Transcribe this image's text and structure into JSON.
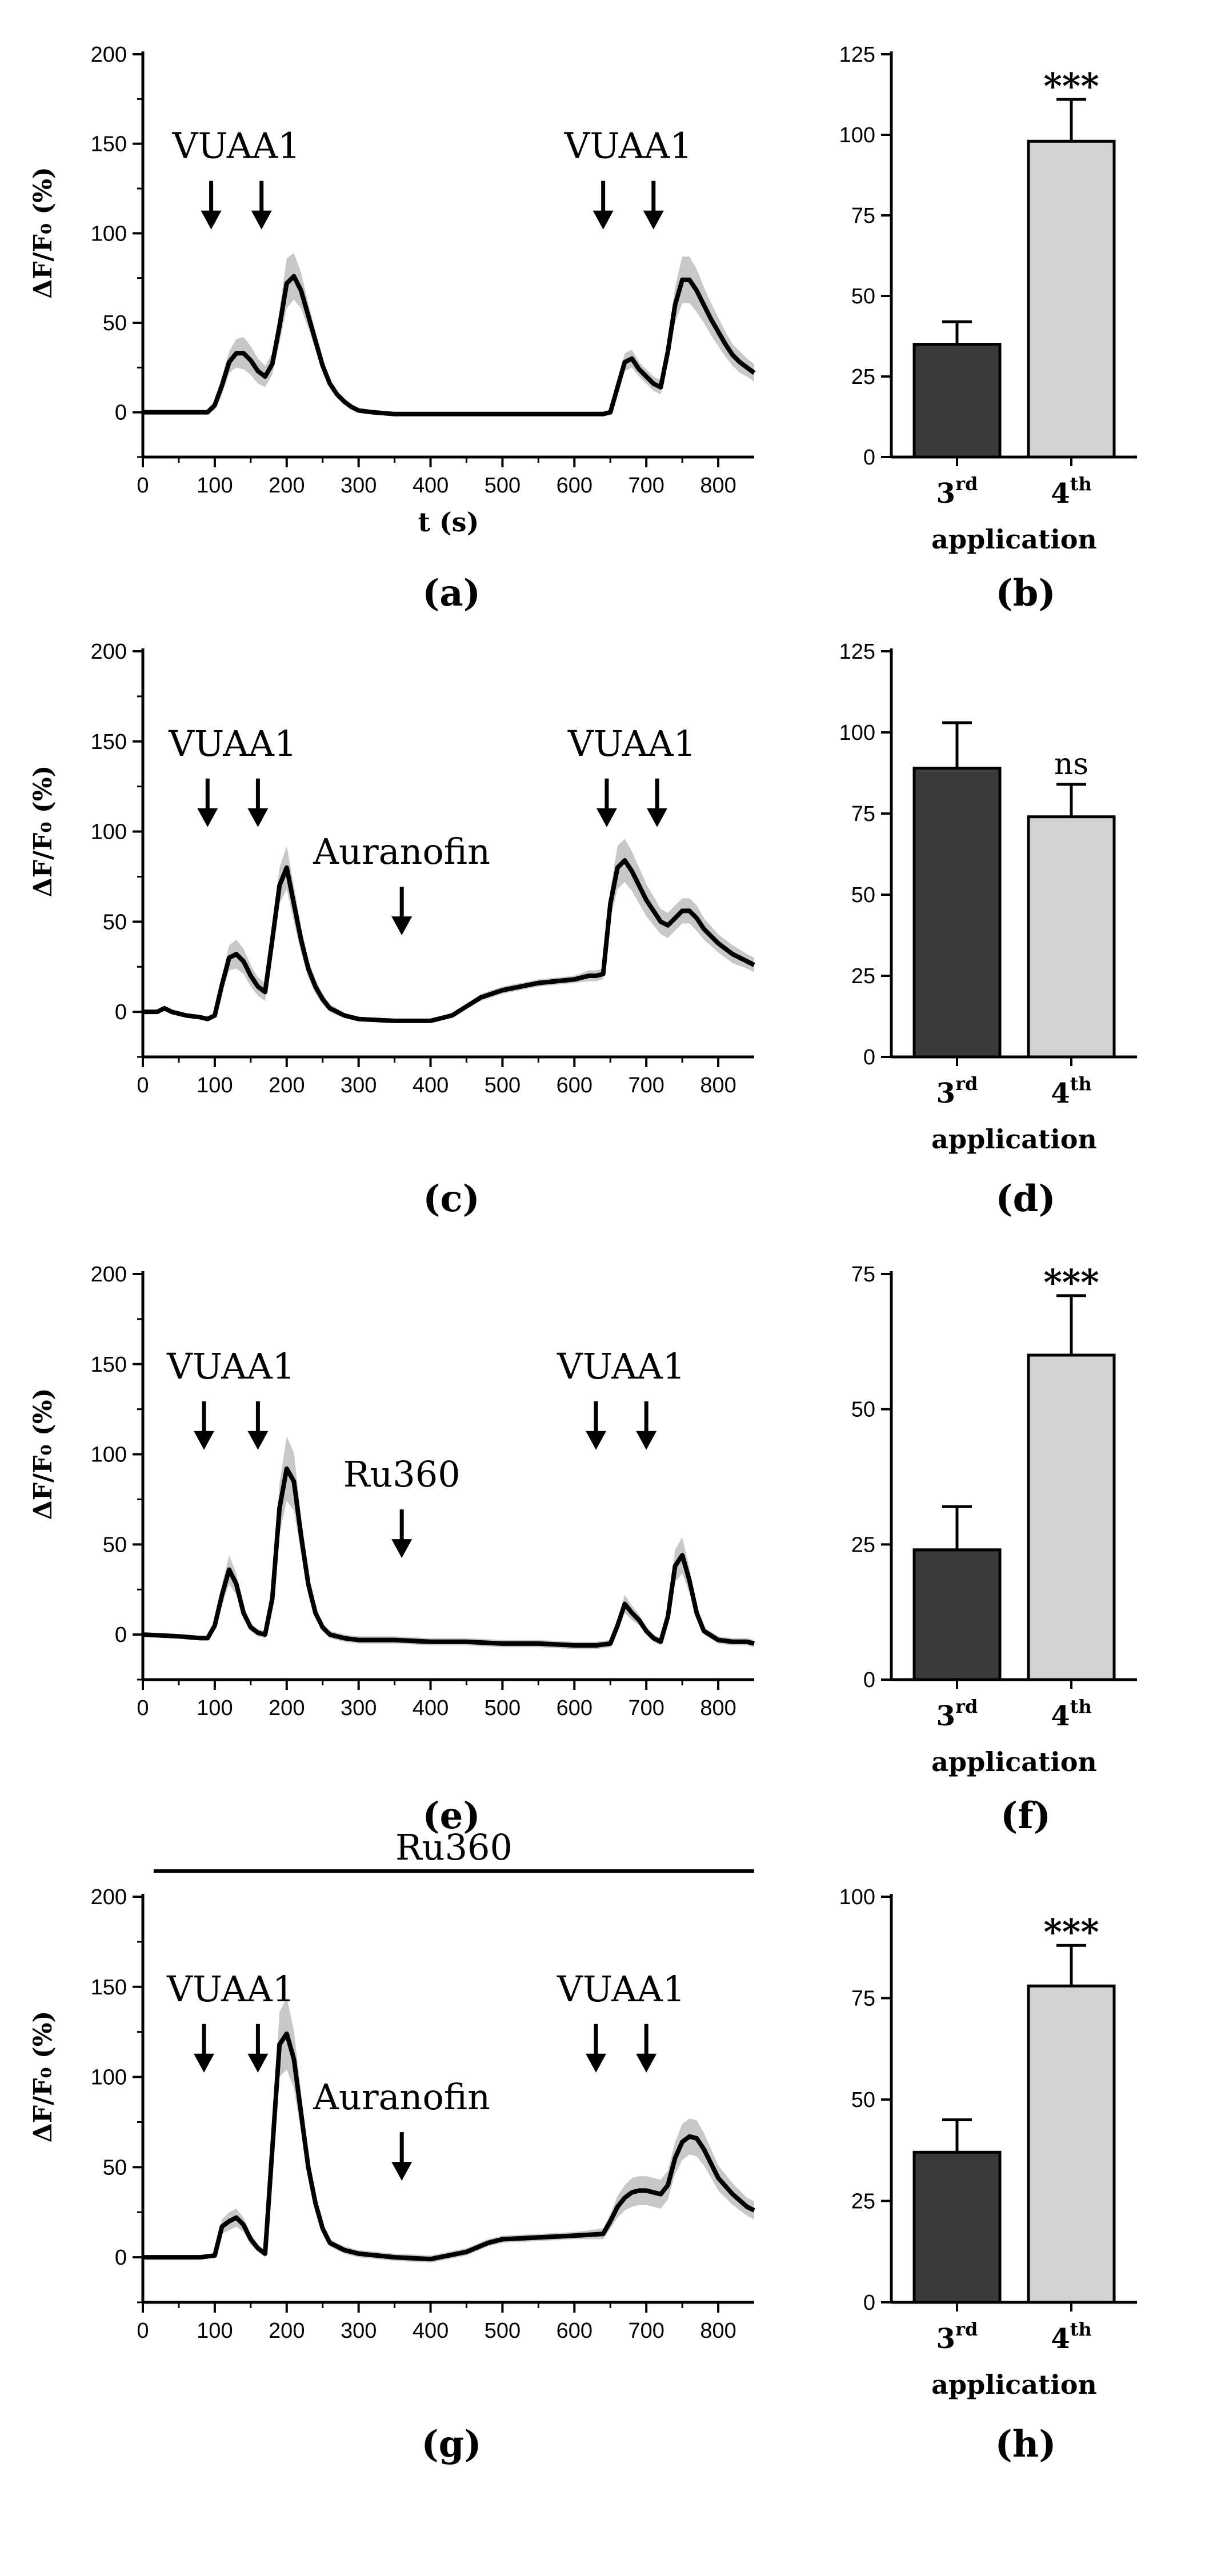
{
  "chart_data": [
    {
      "id": "a",
      "type": "line",
      "panel_label": "(a)",
      "ylabel": "ΔF/F₀ (%)",
      "xlabel": "t (s)",
      "xlim": [
        0,
        850
      ],
      "ylim": [
        -25,
        200
      ],
      "xticks": [
        "0",
        "100",
        "200",
        "300",
        "400",
        "500",
        "600",
        "700",
        "800"
      ],
      "yticks": [
        "0",
        "50",
        "100",
        "150",
        "200"
      ],
      "annotations": [
        {
          "text": "VUAA1",
          "arrows_at": [
            95,
            165
          ]
        },
        {
          "text": "VUAA1",
          "arrows_at": [
            640,
            710
          ]
        }
      ],
      "series": [
        {
          "x": [
            0,
            60,
            80,
            90,
            100,
            110,
            120,
            130,
            140,
            150,
            160,
            170,
            180,
            190,
            200,
            210,
            220,
            230,
            240,
            250,
            260,
            270,
            280,
            290,
            300,
            320,
            350,
            400,
            450,
            500,
            550,
            600,
            620,
            630,
            640,
            650,
            660,
            670,
            680,
            690,
            700,
            710,
            720,
            730,
            740,
            750,
            760,
            770,
            780,
            790,
            800,
            810,
            820,
            830,
            840,
            850
          ],
          "y": [
            0,
            0,
            0,
            0,
            4,
            15,
            28,
            33,
            33,
            29,
            23,
            20,
            27,
            48,
            72,
            76,
            68,
            54,
            40,
            26,
            16,
            10,
            6,
            3,
            1,
            0,
            -1,
            -1,
            -1,
            -1,
            -1,
            -1,
            -1,
            -1,
            -1,
            0,
            14,
            28,
            30,
            24,
            20,
            16,
            14,
            34,
            60,
            74,
            74,
            68,
            60,
            52,
            45,
            38,
            32,
            28,
            25,
            22
          ],
          "band": [
            0,
            0,
            0,
            0,
            3,
            5,
            6,
            8,
            9,
            8,
            7,
            6,
            6,
            9,
            14,
            13,
            10,
            7,
            5,
            3,
            2,
            2,
            1,
            1,
            1,
            1,
            1,
            1,
            1,
            1,
            1,
            1,
            1,
            1,
            1,
            1,
            3,
            5,
            5,
            4,
            4,
            4,
            4,
            6,
            10,
            13,
            13,
            12,
            10,
            9,
            8,
            7,
            6,
            6,
            5,
            5
          ]
        }
      ]
    },
    {
      "id": "b",
      "type": "bar",
      "panel_label": "(b)",
      "xlabel": "application",
      "ylim": [
        0,
        125
      ],
      "yticks": [
        "0",
        "25",
        "50",
        "75",
        "100",
        "125"
      ],
      "categories": [
        {
          "base": "3",
          "sup": "rd"
        },
        {
          "base": "4",
          "sup": "th"
        }
      ],
      "values": [
        35,
        98
      ],
      "errors": [
        7,
        13
      ],
      "colors": [
        "#3a3a3a",
        "#d2d2d2"
      ],
      "significance": [
        "",
        "***"
      ]
    },
    {
      "id": "c",
      "type": "line",
      "panel_label": "(c)",
      "ylabel": "ΔF/F₀ (%)",
      "xlabel": "",
      "xlim": [
        0,
        850
      ],
      "ylim": [
        -25,
        200
      ],
      "xticks": [
        "0",
        "100",
        "200",
        "300",
        "400",
        "500",
        "600",
        "700",
        "800"
      ],
      "yticks": [
        "0",
        "50",
        "100",
        "150",
        "200"
      ],
      "annotations": [
        {
          "text": "VUAA1",
          "arrows_at": [
            90,
            160
          ]
        },
        {
          "text": "VUAA1",
          "arrows_at": [
            645,
            715
          ]
        },
        {
          "text": "Auranofin",
          "arrows_at": [
            360
          ]
        }
      ],
      "series": [
        {
          "x": [
            0,
            20,
            30,
            40,
            60,
            80,
            90,
            100,
            110,
            120,
            130,
            140,
            150,
            160,
            170,
            180,
            190,
            200,
            210,
            220,
            230,
            240,
            250,
            260,
            270,
            280,
            300,
            350,
            400,
            430,
            450,
            470,
            500,
            550,
            600,
            620,
            630,
            640,
            650,
            660,
            670,
            680,
            690,
            700,
            710,
            720,
            730,
            740,
            750,
            760,
            770,
            780,
            800,
            820,
            840,
            850
          ],
          "y": [
            0,
            0,
            2,
            0,
            -2,
            -3,
            -4,
            -2,
            15,
            30,
            32,
            28,
            20,
            14,
            11,
            40,
            70,
            80,
            60,
            40,
            24,
            14,
            7,
            2,
            0,
            -2,
            -4,
            -5,
            -5,
            -2,
            3,
            8,
            12,
            16,
            18,
            20,
            20,
            21,
            60,
            80,
            84,
            78,
            70,
            62,
            56,
            50,
            48,
            52,
            56,
            56,
            52,
            46,
            38,
            32,
            28,
            26
          ],
          "band": [
            1,
            1,
            1,
            1,
            1,
            1,
            1,
            1,
            4,
            7,
            8,
            7,
            6,
            5,
            5,
            7,
            10,
            12,
            10,
            7,
            5,
            4,
            3,
            2,
            2,
            1,
            1,
            1,
            1,
            1,
            1,
            2,
            2,
            2,
            2,
            3,
            3,
            3,
            8,
            12,
            12,
            11,
            10,
            9,
            8,
            7,
            7,
            7,
            7,
            7,
            7,
            6,
            5,
            5,
            4,
            4
          ]
        }
      ]
    },
    {
      "id": "d",
      "type": "bar",
      "panel_label": "(d)",
      "xlabel": "application",
      "ylim": [
        0,
        125
      ],
      "yticks": [
        "0",
        "25",
        "50",
        "75",
        "100",
        "125"
      ],
      "categories": [
        {
          "base": "3",
          "sup": "rd"
        },
        {
          "base": "4",
          "sup": "th"
        }
      ],
      "values": [
        89,
        74
      ],
      "errors": [
        14,
        10
      ],
      "colors": [
        "#3a3a3a",
        "#d2d2d2"
      ],
      "significance": [
        "",
        "ns"
      ]
    },
    {
      "id": "e",
      "type": "line",
      "panel_label": "(e)",
      "ylabel": "ΔF/F₀ (%)",
      "xlabel": "",
      "xlim": [
        0,
        850
      ],
      "ylim": [
        -25,
        200
      ],
      "xticks": [
        "0",
        "100",
        "200",
        "300",
        "400",
        "500",
        "600",
        "700",
        "800"
      ],
      "yticks": [
        "0",
        "50",
        "100",
        "150",
        "200"
      ],
      "annotations": [
        {
          "text": "VUAA1",
          "arrows_at": [
            85,
            160
          ]
        },
        {
          "text": "VUAA1",
          "arrows_at": [
            630,
            700
          ]
        },
        {
          "text": "Ru360",
          "arrows_at": [
            360
          ]
        }
      ],
      "series": [
        {
          "x": [
            0,
            50,
            80,
            90,
            100,
            110,
            120,
            130,
            140,
            150,
            160,
            170,
            180,
            190,
            200,
            210,
            220,
            230,
            240,
            250,
            260,
            280,
            300,
            350,
            400,
            450,
            500,
            550,
            600,
            630,
            650,
            660,
            670,
            680,
            690,
            700,
            710,
            720,
            730,
            740,
            750,
            760,
            770,
            780,
            800,
            820,
            840,
            850
          ],
          "y": [
            0,
            -1,
            -2,
            -2,
            5,
            22,
            36,
            28,
            12,
            4,
            1,
            0,
            20,
            70,
            92,
            85,
            55,
            28,
            12,
            4,
            0,
            -2,
            -3,
            -3,
            -4,
            -4,
            -5,
            -5,
            -6,
            -6,
            -5,
            5,
            17,
            12,
            8,
            2,
            -2,
            -4,
            10,
            38,
            44,
            30,
            12,
            2,
            -3,
            -4,
            -4,
            -5
          ],
          "band": [
            1,
            1,
            1,
            1,
            2,
            6,
            8,
            6,
            3,
            2,
            2,
            2,
            6,
            14,
            18,
            16,
            10,
            6,
            3,
            2,
            2,
            2,
            2,
            2,
            2,
            2,
            2,
            2,
            2,
            2,
            2,
            3,
            5,
            4,
            3,
            2,
            2,
            2,
            4,
            9,
            10,
            7,
            3,
            2,
            2,
            2,
            2,
            2
          ]
        }
      ]
    },
    {
      "id": "f",
      "type": "bar",
      "panel_label": "(f)",
      "xlabel": "application",
      "ylim": [
        0,
        75
      ],
      "yticks": [
        "0",
        "25",
        "50",
        "75"
      ],
      "categories": [
        {
          "base": "3",
          "sup": "rd"
        },
        {
          "base": "4",
          "sup": "th"
        }
      ],
      "values": [
        24,
        60
      ],
      "errors": [
        8,
        11
      ],
      "colors": [
        "#3a3a3a",
        "#d2d2d2"
      ],
      "significance": [
        "",
        "***"
      ]
    },
    {
      "id": "g",
      "type": "line",
      "panel_label": "(g)",
      "ylabel": "ΔF/F₀ (%)",
      "xlabel": "",
      "xlim": [
        0,
        850
      ],
      "ylim": [
        -25,
        200
      ],
      "xticks": [
        "0",
        "100",
        "200",
        "300",
        "400",
        "500",
        "600",
        "700",
        "800"
      ],
      "yticks": [
        "0",
        "50",
        "100",
        "150",
        "200"
      ],
      "top_bar_label": "Ru360",
      "top_bar_range": [
        15,
        850
      ],
      "annotations": [
        {
          "text": "VUAA1",
          "arrows_at": [
            85,
            160
          ]
        },
        {
          "text": "VUAA1",
          "arrows_at": [
            630,
            700
          ]
        },
        {
          "text": "Auranofin",
          "arrows_at": [
            360
          ]
        }
      ],
      "series": [
        {
          "x": [
            0,
            50,
            80,
            100,
            110,
            120,
            130,
            140,
            150,
            160,
            170,
            180,
            190,
            200,
            210,
            220,
            230,
            240,
            250,
            260,
            280,
            300,
            350,
            400,
            450,
            480,
            500,
            550,
            600,
            640,
            650,
            660,
            670,
            680,
            690,
            700,
            710,
            720,
            730,
            740,
            750,
            760,
            770,
            780,
            790,
            800,
            820,
            840,
            850
          ],
          "y": [
            0,
            0,
            0,
            1,
            17,
            20,
            22,
            18,
            10,
            5,
            2,
            60,
            118,
            124,
            110,
            80,
            50,
            30,
            16,
            8,
            4,
            2,
            0,
            -1,
            3,
            8,
            10,
            11,
            12,
            13,
            20,
            28,
            33,
            36,
            37,
            37,
            36,
            35,
            40,
            55,
            64,
            67,
            66,
            60,
            52,
            44,
            35,
            28,
            26
          ],
          "band": [
            1,
            1,
            1,
            1,
            4,
            5,
            5,
            4,
            3,
            2,
            2,
            10,
            18,
            20,
            16,
            11,
            7,
            5,
            3,
            2,
            2,
            2,
            2,
            2,
            2,
            2,
            2,
            2,
            2,
            3,
            4,
            6,
            7,
            8,
            8,
            8,
            8,
            8,
            8,
            9,
            10,
            10,
            10,
            9,
            8,
            7,
            6,
            5,
            5
          ]
        }
      ]
    },
    {
      "id": "h",
      "type": "bar",
      "panel_label": "(h)",
      "xlabel": "application",
      "ylim": [
        0,
        100
      ],
      "yticks": [
        "0",
        "25",
        "50",
        "75",
        "100"
      ],
      "categories": [
        {
          "base": "3",
          "sup": "rd"
        },
        {
          "base": "4",
          "sup": "th"
        }
      ],
      "values": [
        37,
        78
      ],
      "errors": [
        8,
        10
      ],
      "colors": [
        "#3a3a3a",
        "#d2d2d2"
      ],
      "significance": [
        "",
        "***"
      ]
    }
  ]
}
